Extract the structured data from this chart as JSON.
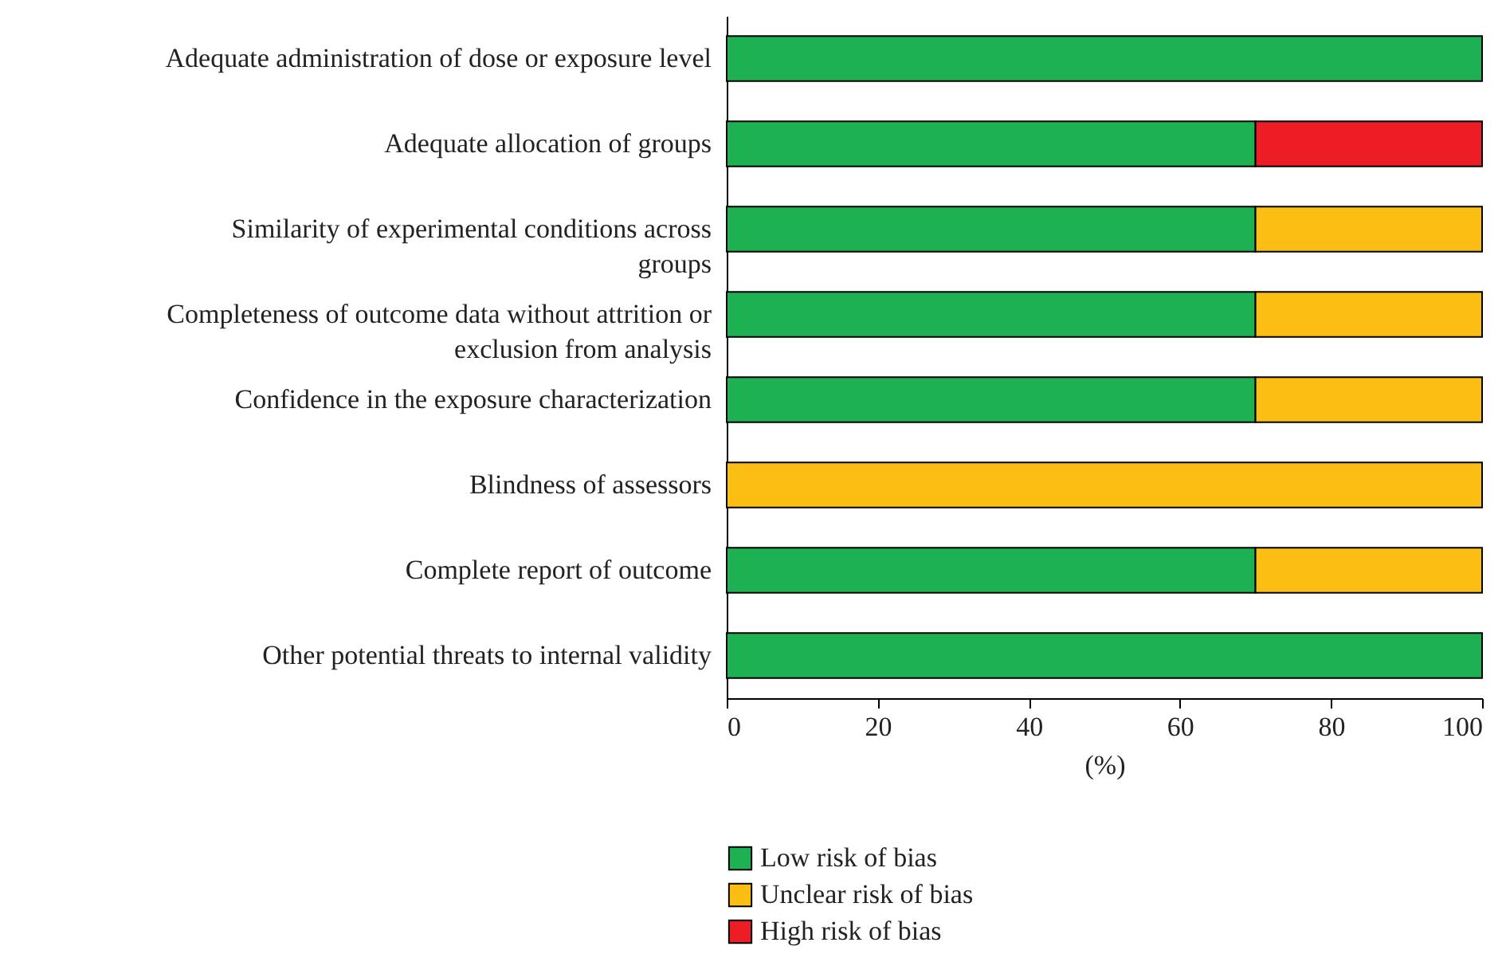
{
  "chart_data": {
    "type": "bar",
    "orientation": "horizontal",
    "stacked": true,
    "categories": [
      "Adequate administration of dose or exposure level",
      "Adequate allocation of groups",
      "Similarity of experimental conditions across groups",
      "Completeness of outcome data without attrition or exclusion from analysis",
      "Confidence in the exposure characterization",
      "Blindness of assessors",
      "Complete report of outcome",
      "Other potential threats to internal validity"
    ],
    "series": [
      {
        "name": "Low risk of bias",
        "color": "#1db152",
        "values": [
          100,
          70,
          70,
          70,
          70,
          0,
          70,
          100
        ]
      },
      {
        "name": "Unclear risk of bias",
        "color": "#fdbe13",
        "values": [
          0,
          0,
          30,
          30,
          30,
          100,
          30,
          0
        ]
      },
      {
        "name": "High risk of bias",
        "color": "#ec1d25",
        "values": [
          0,
          30,
          0,
          0,
          0,
          0,
          0,
          0
        ]
      }
    ],
    "xlabel": "(%)",
    "xlim": [
      0,
      100
    ],
    "xticks": [
      0,
      20,
      40,
      60,
      80,
      100
    ],
    "grid": false,
    "legend": "bottom"
  }
}
